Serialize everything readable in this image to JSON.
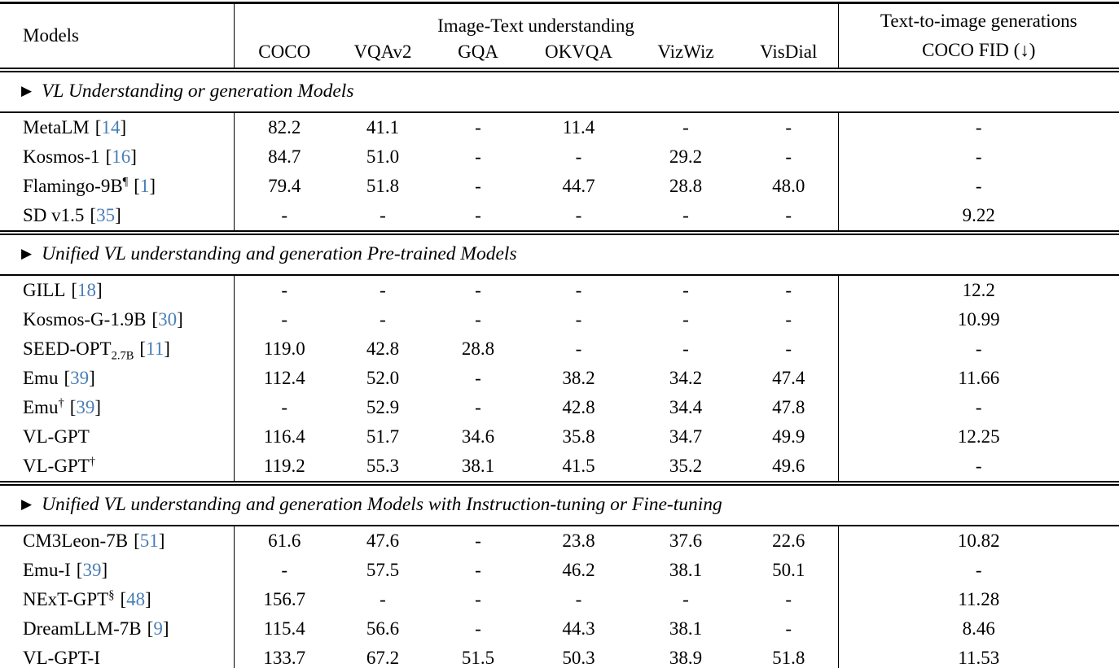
{
  "table": {
    "corner_label": "Models",
    "group_header": "Image-Text understanding",
    "right_header_line1": "Text-to-image generations",
    "right_header_line2": "COCO FID (↓)",
    "columns": [
      "COCO",
      "VQAv2",
      "GQA",
      "OKVQA",
      "VizWiz",
      "VisDial"
    ],
    "section_marker": "▶",
    "citation_brackets": [
      "[",
      "]"
    ],
    "sections": [
      {
        "title": "VL Understanding or generation Models",
        "rows": [
          {
            "model": "MetaLM",
            "cite": "14",
            "values": [
              "82.2",
              "41.1",
              "-",
              "11.4",
              "-",
              "-"
            ],
            "fid": "-"
          },
          {
            "model": "Kosmos-1",
            "cite": "16",
            "values": [
              "84.7",
              "51.0",
              "-",
              "-",
              "29.2",
              "-"
            ],
            "fid": "-"
          },
          {
            "model": "Flamingo-9B",
            "sup": "¶",
            "cite": "1",
            "values": [
              "79.4",
              "51.8",
              "-",
              "44.7",
              "28.8",
              "48.0"
            ],
            "fid": "-"
          },
          {
            "model": "SD v1.5",
            "cite": "35",
            "values": [
              "-",
              "-",
              "-",
              "-",
              "-",
              "-"
            ],
            "fid": "9.22"
          }
        ]
      },
      {
        "title": "Unified VL understanding and generation Pre-trained Models",
        "rows": [
          {
            "model": "GILL",
            "cite": "18",
            "values": [
              "-",
              "-",
              "-",
              "-",
              "-",
              "-"
            ],
            "fid": "12.2"
          },
          {
            "model": "Kosmos-G-1.9B",
            "cite": "30",
            "values": [
              "-",
              "-",
              "-",
              "-",
              "-",
              "-"
            ],
            "fid": "10.99"
          },
          {
            "model": "SEED-OPT",
            "sub": "2.7B",
            "cite": "11",
            "values": [
              "119.0",
              "42.8",
              "28.8",
              "-",
              "-",
              "-"
            ],
            "fid": "-"
          },
          {
            "model": "Emu",
            "cite": "39",
            "values": [
              "112.4",
              "52.0",
              "-",
              "38.2",
              "34.2",
              "47.4"
            ],
            "fid": "11.66"
          },
          {
            "model": "Emu",
            "sup": "†",
            "cite": "39",
            "values": [
              "-",
              "52.9",
              "-",
              "42.8",
              "34.4",
              "47.8"
            ],
            "fid": "-"
          },
          {
            "model": "VL-GPT",
            "values": [
              "116.4",
              "51.7",
              "34.6",
              "35.8",
              "34.7",
              "49.9"
            ],
            "fid": "12.25"
          },
          {
            "model": "VL-GPT",
            "sup": "†",
            "values": [
              "119.2",
              "55.3",
              "38.1",
              "41.5",
              "35.2",
              "49.6"
            ],
            "fid": "-"
          }
        ]
      },
      {
        "title": "Unified VL understanding and generation Models with Instruction-tuning or Fine-tuning",
        "rows": [
          {
            "model": "CM3Leon-7B",
            "cite": "51",
            "values": [
              "61.6",
              "47.6",
              "-",
              "23.8",
              "37.6",
              "22.6"
            ],
            "fid": "10.82"
          },
          {
            "model": "Emu-I",
            "cite": "39",
            "values": [
              "-",
              "57.5",
              "-",
              "46.2",
              "38.1",
              "50.1"
            ],
            "fid": "-"
          },
          {
            "model": "NExT-GPT",
            "sup": "§",
            "cite": "48",
            "values": [
              "156.7",
              "-",
              "-",
              "-",
              "-",
              "-"
            ],
            "fid": "11.28"
          },
          {
            "model": "DreamLLM-7B",
            "cite": "9",
            "values": [
              "115.4",
              "56.6",
              "-",
              "44.3",
              "38.1",
              "-"
            ],
            "fid": "8.46"
          },
          {
            "model": "VL-GPT-I",
            "values": [
              "133.7",
              "67.2",
              "51.5",
              "50.3",
              "38.9",
              "51.8"
            ],
            "fid": "11.53"
          }
        ]
      }
    ]
  },
  "colors": {
    "citation_blue": "#4a7eb5",
    "rule_black": "#000000"
  }
}
